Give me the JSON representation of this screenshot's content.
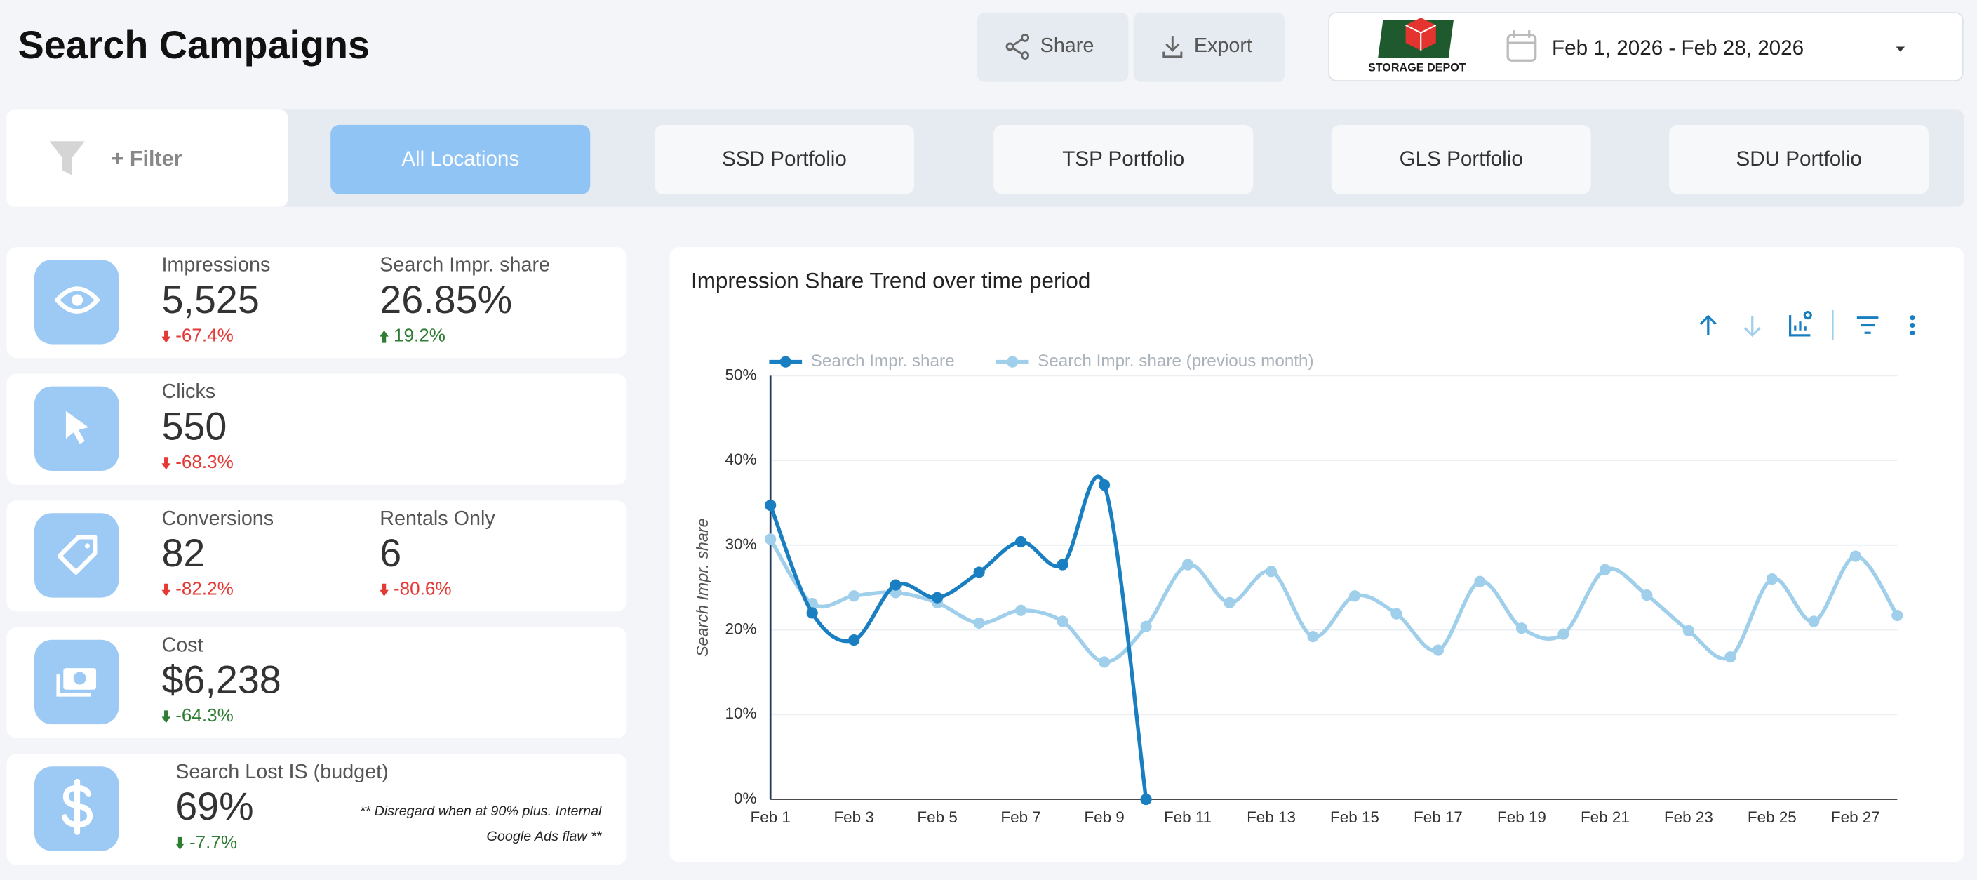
{
  "header": {
    "title": "Search Campaigns",
    "buttons": [
      "Share",
      "Export"
    ],
    "logo_text": "STORAGE DEPOT",
    "date_range": "Feb 1, 2026 - Feb 28, 2026"
  },
  "filter_bar": {
    "filter_label": "+ Filter",
    "tabs": [
      "All Locations",
      "SSD Portfolio",
      "TSP Portfolio",
      "GLS Portfolio",
      "SDU Portfolio"
    ],
    "active_tab": 0
  },
  "kpi_cards": [
    {
      "metrics": [
        {
          "label": "Impressions",
          "value": "5,525",
          "change": "-67.4%",
          "color": "#e53935"
        },
        {
          "label": "Search Impr. share",
          "value": "26.85%",
          "change": "19.2%",
          "color": "#2e7d32"
        }
      ]
    },
    {
      "metrics": [
        {
          "label": "Clicks",
          "value": "550",
          "change": "-68.3%",
          "color": "#e53935"
        }
      ]
    },
    {
      "metrics": [
        {
          "label": "Conversions",
          "value": "82",
          "change": "-82.2%",
          "color": "#e53935"
        },
        {
          "label": "Rentals Only",
          "value": "6",
          "change": "-80.6%",
          "color": "#e53935"
        }
      ]
    },
    {
      "metrics": [
        {
          "label": "Cost",
          "value": "$6,238",
          "change": "-64.3%",
          "color": "#2e7d32"
        }
      ]
    },
    {
      "metrics": [
        {
          "label": "Search Lost IS (budget)",
          "value": "69%",
          "change": "-7.7%",
          "color": "#2e7d32"
        }
      ],
      "note_lines": [
        "** Disregard when at 90% plus. Internal",
        "Google Ads flaw **"
      ]
    }
  ],
  "chart_data": {
    "type": "line",
    "title": "Impression Share Trend over time period",
    "y_label": "Search Impr. share",
    "categories": [
      "Feb 1",
      null,
      "Feb 3",
      null,
      "Feb 5",
      null,
      "Feb 7",
      null,
      "Feb 9",
      null,
      "Feb 11",
      null,
      "Feb 13",
      null,
      "Feb 15",
      null,
      "Feb 17",
      null,
      "Feb 19",
      null,
      "Feb 21",
      null,
      "Feb 23",
      null,
      "Feb 25",
      null,
      "Feb 27",
      null
    ],
    "series": [
      {
        "name": "Search Impr. share",
        "color": "#1a7fc1",
        "values": [
          34.7,
          22.0,
          18.8,
          25.3,
          23.8,
          26.8,
          30.4,
          27.7,
          37.1,
          0,
          null,
          null,
          null,
          null,
          null,
          null,
          null,
          null,
          null,
          null,
          null,
          null,
          null,
          null,
          null,
          null,
          null,
          null
        ]
      },
      {
        "name": "Search Impr. share (previous month)",
        "color": "#9fcfea",
        "values": [
          30.7,
          23.1,
          24.0,
          24.4,
          23.2,
          20.8,
          22.3,
          21.0,
          16.2,
          20.4,
          27.7,
          23.2,
          26.9,
          19.2,
          24.0,
          21.9,
          17.6,
          25.7,
          20.2,
          19.5,
          27.1,
          24.1,
          19.9,
          16.8,
          26.0,
          21.0,
          28.7,
          21.7
        ]
      }
    ],
    "ylim": [
      0,
      50
    ],
    "yticks": [
      {
        "value": 0,
        "label": "0%"
      },
      {
        "value": 10,
        "label": "10%"
      },
      {
        "value": 20,
        "label": "20%"
      },
      {
        "value": 30,
        "label": "30%"
      },
      {
        "value": 40,
        "label": "40%"
      },
      {
        "value": 50,
        "label": "50%"
      }
    ],
    "grid": true,
    "legend": "top"
  }
}
